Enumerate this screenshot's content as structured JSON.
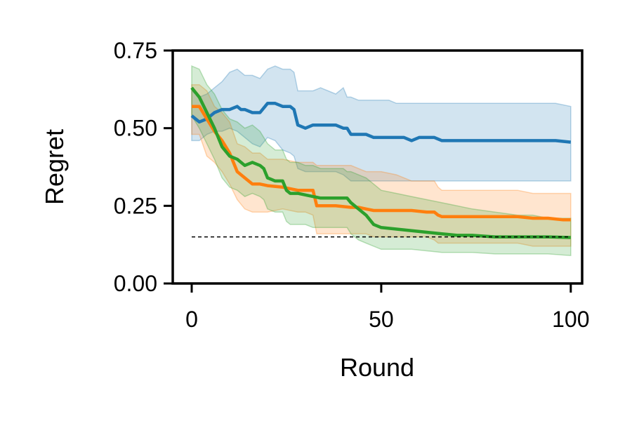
{
  "chart_data": {
    "type": "line",
    "title": "",
    "xlabel": "Round",
    "ylabel": "Regret",
    "xlim": [
      -5,
      103
    ],
    "ylim": [
      0,
      0.75
    ],
    "xticks": [
      0,
      50,
      100
    ],
    "xtick_labels": [
      "0",
      "50",
      "100"
    ],
    "yticks": [
      0,
      0.25,
      0.5,
      0.75
    ],
    "ytick_labels": [
      "0.00",
      "0.25",
      "0.50",
      "0.75"
    ],
    "grid": false,
    "legend": "none",
    "reference_line": {
      "y": 0.15,
      "x": [
        0,
        100
      ],
      "style": "dashed",
      "color": "#000000"
    },
    "series": [
      {
        "color": "#1f77b4",
        "x": [
          0,
          2,
          4,
          6,
          8,
          10,
          12,
          13,
          14,
          16,
          18,
          20,
          22,
          24,
          26,
          27,
          28,
          30,
          32,
          34,
          36,
          38,
          40,
          41,
          42,
          44,
          46,
          48,
          50,
          52,
          54,
          56,
          58,
          60,
          64,
          66,
          70,
          74,
          80,
          84,
          88,
          92,
          96,
          100
        ],
        "y": [
          0.54,
          0.52,
          0.53,
          0.55,
          0.56,
          0.56,
          0.57,
          0.56,
          0.56,
          0.55,
          0.55,
          0.58,
          0.58,
          0.57,
          0.57,
          0.56,
          0.51,
          0.5,
          0.51,
          0.51,
          0.51,
          0.51,
          0.5,
          0.5,
          0.48,
          0.48,
          0.48,
          0.47,
          0.47,
          0.47,
          0.47,
          0.47,
          0.46,
          0.47,
          0.47,
          0.46,
          0.46,
          0.46,
          0.46,
          0.46,
          0.46,
          0.46,
          0.46,
          0.455
        ],
        "lower": [
          0.46,
          0.46,
          0.48,
          0.49,
          0.49,
          0.5,
          0.49,
          0.48,
          0.47,
          0.45,
          0.44,
          0.47,
          0.46,
          0.43,
          0.42,
          0.41,
          0.37,
          0.36,
          0.36,
          0.36,
          0.36,
          0.36,
          0.35,
          0.34,
          0.33,
          0.33,
          0.33,
          0.33,
          0.33,
          0.33,
          0.33,
          0.33,
          0.33,
          0.33,
          0.33,
          0.33,
          0.33,
          0.33,
          0.33,
          0.33,
          0.33,
          0.33,
          0.33,
          0.33
        ],
        "upper": [
          0.62,
          0.6,
          0.61,
          0.63,
          0.65,
          0.68,
          0.69,
          0.68,
          0.67,
          0.67,
          0.66,
          0.69,
          0.7,
          0.69,
          0.69,
          0.68,
          0.62,
          0.62,
          0.62,
          0.63,
          0.62,
          0.61,
          0.63,
          0.6,
          0.6,
          0.59,
          0.59,
          0.59,
          0.59,
          0.59,
          0.58,
          0.58,
          0.58,
          0.58,
          0.58,
          0.58,
          0.58,
          0.58,
          0.58,
          0.58,
          0.58,
          0.58,
          0.58,
          0.57
        ]
      },
      {
        "color": "#ff7f0e",
        "x": [
          0,
          2,
          4,
          6,
          8,
          10,
          12,
          14,
          16,
          18,
          20,
          24,
          28,
          30,
          32,
          33,
          34,
          38,
          42,
          44,
          46,
          48,
          50,
          54,
          58,
          62,
          64,
          65,
          66,
          70,
          74,
          80,
          86,
          90,
          94,
          98,
          100
        ],
        "y": [
          0.57,
          0.57,
          0.53,
          0.49,
          0.46,
          0.42,
          0.36,
          0.34,
          0.32,
          0.32,
          0.315,
          0.31,
          0.3,
          0.3,
          0.3,
          0.25,
          0.25,
          0.25,
          0.245,
          0.245,
          0.24,
          0.235,
          0.235,
          0.235,
          0.235,
          0.23,
          0.23,
          0.22,
          0.215,
          0.215,
          0.215,
          0.215,
          0.215,
          0.21,
          0.21,
          0.205,
          0.205
        ],
        "lower": [
          0.48,
          0.48,
          0.41,
          0.39,
          0.36,
          0.32,
          0.27,
          0.24,
          0.23,
          0.23,
          0.23,
          0.24,
          0.23,
          0.23,
          0.22,
          0.16,
          0.16,
          0.16,
          0.16,
          0.16,
          0.16,
          0.15,
          0.15,
          0.15,
          0.15,
          0.15,
          0.14,
          0.13,
          0.13,
          0.13,
          0.13,
          0.13,
          0.13,
          0.12,
          0.12,
          0.12,
          0.12
        ],
        "upper": [
          0.64,
          0.64,
          0.62,
          0.57,
          0.55,
          0.52,
          0.45,
          0.44,
          0.42,
          0.42,
          0.4,
          0.4,
          0.39,
          0.39,
          0.39,
          0.38,
          0.38,
          0.38,
          0.38,
          0.37,
          0.36,
          0.36,
          0.36,
          0.35,
          0.33,
          0.33,
          0.33,
          0.31,
          0.3,
          0.3,
          0.3,
          0.3,
          0.3,
          0.29,
          0.29,
          0.29,
          0.29
        ]
      },
      {
        "color": "#2ca02c",
        "x": [
          0,
          2,
          4,
          6,
          8,
          10,
          12,
          14,
          16,
          18,
          19,
          20,
          22,
          24,
          25,
          26,
          28,
          30,
          32,
          34,
          36,
          38,
          40,
          41,
          42,
          44,
          46,
          48,
          50,
          54,
          58,
          62,
          66,
          70,
          74,
          80,
          86,
          90,
          94,
          100
        ],
        "y": [
          0.63,
          0.6,
          0.55,
          0.5,
          0.44,
          0.41,
          0.4,
          0.38,
          0.39,
          0.38,
          0.37,
          0.34,
          0.33,
          0.33,
          0.3,
          0.29,
          0.29,
          0.285,
          0.28,
          0.275,
          0.275,
          0.275,
          0.275,
          0.275,
          0.26,
          0.24,
          0.22,
          0.19,
          0.18,
          0.175,
          0.17,
          0.165,
          0.16,
          0.155,
          0.155,
          0.15,
          0.15,
          0.15,
          0.15,
          0.148
        ],
        "lower": [
          0.54,
          0.5,
          0.45,
          0.4,
          0.34,
          0.31,
          0.3,
          0.28,
          0.29,
          0.28,
          0.27,
          0.24,
          0.23,
          0.23,
          0.2,
          0.19,
          0.19,
          0.19,
          0.18,
          0.18,
          0.18,
          0.18,
          0.18,
          0.18,
          0.16,
          0.14,
          0.13,
          0.12,
          0.11,
          0.11,
          0.11,
          0.105,
          0.1,
          0.1,
          0.1,
          0.095,
          0.095,
          0.095,
          0.095,
          0.09
        ],
        "upper": [
          0.7,
          0.69,
          0.64,
          0.61,
          0.56,
          0.53,
          0.52,
          0.5,
          0.51,
          0.49,
          0.47,
          0.45,
          0.43,
          0.43,
          0.4,
          0.39,
          0.39,
          0.38,
          0.38,
          0.37,
          0.37,
          0.37,
          0.37,
          0.36,
          0.36,
          0.35,
          0.34,
          0.32,
          0.3,
          0.29,
          0.28,
          0.27,
          0.26,
          0.25,
          0.24,
          0.23,
          0.22,
          0.22,
          0.21,
          0.21
        ]
      }
    ]
  }
}
